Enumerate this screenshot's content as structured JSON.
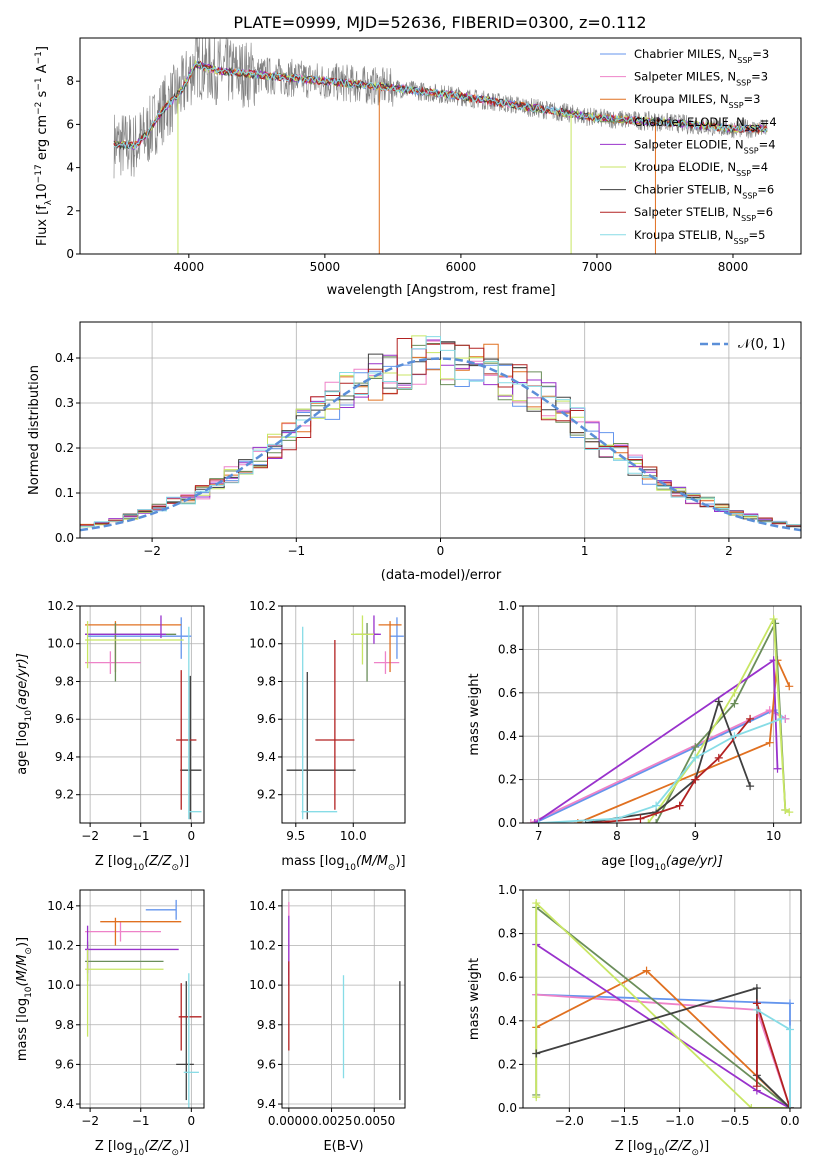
{
  "title": "PLATE=0999, MJD=52636, FIBERID=0300, z=0.112",
  "colors": {
    "gray": "#888888",
    "grid": "#b0b0b0",
    "spectrum_gray": "#7f7f7f"
  },
  "legend_spec": [
    {
      "label": "Chabrier MILES, N",
      "sub": "SSP",
      "tail": "=3",
      "color": "#6495ed"
    },
    {
      "label": "Salpeter MILES, N",
      "sub": "SSP",
      "tail": "=3",
      "color": "#ee82c8"
    },
    {
      "label": "Kroupa MILES, N",
      "sub": "SSP",
      "tail": "=3",
      "color": "#e07020"
    },
    {
      "label": "Chabrier ELODIE, N",
      "sub": "SSP",
      "tail": "=4",
      "color": "#6b8e5a"
    },
    {
      "label": "Salpeter ELODIE, N",
      "sub": "SSP",
      "tail": "=4",
      "color": "#9932cc"
    },
    {
      "label": "Kroupa ELODIE, N",
      "sub": "SSP",
      "tail": "=4",
      "color": "#c8e664"
    },
    {
      "label": "Chabrier STELIB, N",
      "sub": "SSP",
      "tail": "=6",
      "color": "#404040"
    },
    {
      "label": "Salpeter STELIB, N",
      "sub": "SSP",
      "tail": "=6",
      "color": "#b22222"
    },
    {
      "label": "Kroupa STELIB, N",
      "sub": "SSP",
      "tail": "=5",
      "color": "#87dce6"
    }
  ],
  "chart_data": [
    {
      "id": "spectrum",
      "type": "line",
      "xlabel": "wavelength [Angstrom, rest frame]",
      "ylabel_main": "Flux [f",
      "ylabel_sub": "λ",
      "ylabel_mid": "10",
      "ylabel_sup1": "−17",
      "ylabel_tail": " erg cm",
      "ylabel_sup2": "−2",
      "ylabel_tail2": " s",
      "ylabel_sup3": "−1",
      "ylabel_tail3": " A",
      "ylabel_sup4": "−1",
      "ylabel_end": "]",
      "xlim": [
        3200,
        8500
      ],
      "ylim": [
        0,
        10
      ],
      "xticks": [
        "4000",
        "5000",
        "6000",
        "7000",
        "8000"
      ],
      "xtick_values": [
        4000,
        5000,
        6000,
        7000,
        8000
      ],
      "yticks": [
        "0",
        "2",
        "4",
        "6",
        "8"
      ],
      "ytick_values": [
        0,
        2,
        4,
        6,
        8
      ],
      "continuum": [
        [
          3450,
          5.1
        ],
        [
          3600,
          5.0
        ],
        [
          3700,
          5.6
        ],
        [
          3800,
          6.6
        ],
        [
          3950,
          7.6
        ],
        [
          4050,
          8.8
        ],
        [
          4200,
          8.5
        ],
        [
          4500,
          8.3
        ],
        [
          5000,
          8.0
        ],
        [
          5500,
          7.7
        ],
        [
          6000,
          7.3
        ],
        [
          6500,
          6.8
        ],
        [
          7000,
          6.3
        ],
        [
          7500,
          6.1
        ],
        [
          8000,
          5.8
        ],
        [
          8250,
          5.8
        ]
      ]
    },
    {
      "id": "residuals",
      "type": "histogram",
      "xlabel": "(data-model)/error",
      "ylabel": "Normed distribution",
      "xlim": [
        -2.5,
        2.5
      ],
      "ylim": [
        0,
        0.48
      ],
      "xticks": [
        "−2",
        "−1",
        "0",
        "1",
        "2"
      ],
      "xtick_values": [
        -2,
        -1,
        0,
        1,
        2
      ],
      "yticks": [
        "0.0",
        "0.1",
        "0.2",
        "0.3",
        "0.4"
      ],
      "ytick_values": [
        0,
        0.1,
        0.2,
        0.3,
        0.4
      ],
      "legend": "𝒩(0, 1)",
      "gaussian": {
        "mu": 0,
        "sigma": 1,
        "color": "#5b8fd8"
      }
    },
    {
      "id": "age_vs_Z",
      "type": "errorbar",
      "xlabel": "Z [log",
      "xlabel_sub": "10",
      "xlabel_tail": "(Z/Z",
      "xlabel_sub2": "⊙",
      "xlabel_end": ")]",
      "ylabel": "age  [log",
      "ylabel_sub": "10",
      "ylabel_tail": "(age/yr)]",
      "xlim": [
        -2.2,
        0.25
      ],
      "ylim": [
        9.05,
        10.2
      ],
      "xticks": [
        "−2",
        "−1",
        "0"
      ],
      "xtick_values": [
        -2,
        -1,
        0
      ],
      "yticks": [
        "9.2",
        "9.4",
        "9.6",
        "9.8",
        "10.0",
        "10.2"
      ],
      "ytick_values": [
        9.2,
        9.4,
        9.6,
        9.8,
        10.0,
        10.2
      ],
      "points": [
        {
          "x": -0.2,
          "y": 10.04,
          "xe": [
            1.85,
            0.2
          ],
          "ye": [
            0.12,
            0.1
          ],
          "color": "#6495ed"
        },
        {
          "x": -1.6,
          "y": 9.9,
          "xe": [
            0.5,
            0.6
          ],
          "ye": [
            0.06,
            0.06
          ],
          "color": "#ee82c8"
        },
        {
          "x": -1.5,
          "y": 10.1,
          "xe": [
            0.6,
            1.3
          ],
          "ye": [
            0.25,
            0.02
          ],
          "color": "#e07020"
        },
        {
          "x": -1.5,
          "y": 10.05,
          "xe": [
            0.6,
            1.2
          ],
          "ye": [
            0.25,
            0.06
          ],
          "color": "#6b8e5a"
        },
        {
          "x": -0.6,
          "y": 10.05,
          "xe": [
            1.5,
            0.1
          ],
          "ye": [
            0.02,
            0.1
          ],
          "color": "#9932cc"
        },
        {
          "x": -2.05,
          "y": 10.02,
          "xe": [
            0.05,
            1.9
          ],
          "ye": [
            0.15,
            0.1
          ],
          "color": "#c8e664"
        },
        {
          "x": -0.02,
          "y": 9.33,
          "xe": [
            0.2,
            0.22
          ],
          "ye": [
            0.26,
            0.5
          ],
          "color": "#404040"
        },
        {
          "x": -0.2,
          "y": 9.49,
          "xe": [
            0.1,
            0.3
          ],
          "ye": [
            0.37,
            0.37
          ],
          "color": "#b22222"
        },
        {
          "x": -0.05,
          "y": 9.11,
          "xe": [
            0.01,
            0.25
          ],
          "ye": [
            0.04,
            0.98
          ],
          "color": "#87dce6"
        }
      ]
    },
    {
      "id": "age_vs_mass",
      "type": "errorbar",
      "xlabel": "mass [log",
      "xlabel_sub": "10",
      "xlabel_tail": "(M/M",
      "xlabel_sub2": "⊙",
      "xlabel_end": ")]",
      "xlim": [
        9.38,
        10.45
      ],
      "ylim": [
        9.05,
        10.2
      ],
      "xticks": [
        "9.5",
        "10.0"
      ],
      "xtick_values": [
        9.5,
        10.0
      ],
      "yticks": [
        "9.2",
        "9.4",
        "9.6",
        "9.8",
        "10.0",
        "10.2"
      ],
      "ytick_values": [
        9.2,
        9.4,
        9.6,
        9.8,
        10.0,
        10.2
      ],
      "points": [
        {
          "x": 10.38,
          "y": 10.04,
          "xe": [
            0.06,
            0.06
          ],
          "ye": [
            0.12,
            0.1
          ],
          "color": "#6495ed"
        },
        {
          "x": 10.28,
          "y": 9.9,
          "xe": [
            0.1,
            0.12
          ],
          "ye": [
            0.06,
            0.06
          ],
          "color": "#ee82c8"
        },
        {
          "x": 10.32,
          "y": 10.1,
          "xe": [
            0.1,
            0.1
          ],
          "ye": [
            0.25,
            0.02
          ],
          "color": "#e07020"
        },
        {
          "x": 10.12,
          "y": 10.05,
          "xe": [
            0.1,
            0.1
          ],
          "ye": [
            0.25,
            0.06
          ],
          "color": "#6b8e5a"
        },
        {
          "x": 10.18,
          "y": 10.05,
          "xe": [
            0.12,
            0.06
          ],
          "ye": [
            0.05,
            0.1
          ],
          "color": "#9932cc"
        },
        {
          "x": 10.08,
          "y": 10.05,
          "xe": [
            0.1,
            0.1
          ],
          "ye": [
            0.16,
            0.1
          ],
          "color": "#c8e664"
        },
        {
          "x": 9.6,
          "y": 9.33,
          "xe": [
            0.18,
            0.42
          ],
          "ye": [
            0.26,
            0.52
          ],
          "color": "#404040"
        },
        {
          "x": 9.84,
          "y": 9.49,
          "xe": [
            0.17,
            0.17
          ],
          "ye": [
            0.37,
            0.53
          ],
          "color": "#b22222"
        },
        {
          "x": 9.56,
          "y": 9.11,
          "xe": [
            0.01,
            0.3
          ],
          "ye": [
            0.04,
            0.98
          ],
          "color": "#87dce6"
        }
      ]
    },
    {
      "id": "mass_weight_vs_age",
      "type": "line",
      "xlabel": "age  [log",
      "xlabel_sub": "10",
      "xlabel_tail": "(age/yr)]",
      "ylabel": "mass weight",
      "xlim": [
        6.8,
        10.35
      ],
      "ylim": [
        0,
        1.0
      ],
      "xticks": [
        "7",
        "8",
        "9",
        "10"
      ],
      "xtick_values": [
        7,
        8,
        9,
        10
      ],
      "yticks": [
        "0.0",
        "0.2",
        "0.4",
        "0.6",
        "0.8",
        "1.0"
      ],
      "ytick_values": [
        0,
        0.2,
        0.4,
        0.6,
        0.8,
        1.0
      ],
      "series": [
        {
          "color": "#6495ed",
          "x": [
            6.95,
            10.0,
            10.15
          ],
          "y": [
            0.0,
            0.52,
            0.48
          ]
        },
        {
          "color": "#ee82c8",
          "x": [
            6.9,
            9.95,
            10.15
          ],
          "y": [
            0.0,
            0.52,
            0.48
          ]
        },
        {
          "color": "#e07020",
          "x": [
            7.5,
            9.95,
            10.05,
            10.2
          ],
          "y": [
            0.0,
            0.37,
            0.75,
            0.63
          ]
        },
        {
          "color": "#6b8e5a",
          "x": [
            8.5,
            9.0,
            9.5,
            10.02,
            10.15
          ],
          "y": [
            0.0,
            0.35,
            0.55,
            0.92,
            0.06
          ]
        },
        {
          "color": "#9932cc",
          "x": [
            6.95,
            10.0,
            10.05
          ],
          "y": [
            0.0,
            0.75,
            0.25
          ]
        },
        {
          "color": "#c8e664",
          "x": [
            8.4,
            9.0,
            9.5,
            10.0,
            10.15,
            10.2
          ],
          "y": [
            0.0,
            0.3,
            0.6,
            0.94,
            0.06,
            0.05
          ]
        },
        {
          "color": "#404040",
          "x": [
            7.6,
            8.5,
            9.0,
            9.3,
            9.7
          ],
          "y": [
            0.0,
            0.05,
            0.2,
            0.56,
            0.17
          ]
        },
        {
          "color": "#b22222",
          "x": [
            7.7,
            8.3,
            8.8,
            9.0,
            9.3,
            9.7
          ],
          "y": [
            0.0,
            0.02,
            0.08,
            0.2,
            0.3,
            0.48
          ]
        },
        {
          "color": "#87dce6",
          "x": [
            7.0,
            8.0,
            8.5,
            9.0,
            9.5,
            10.1
          ],
          "y": [
            0.0,
            0.02,
            0.08,
            0.3,
            0.4,
            0.48
          ]
        }
      ]
    },
    {
      "id": "mass_vs_Z",
      "type": "errorbar",
      "xlabel": "Z [log",
      "xlabel_sub": "10",
      "xlabel_tail": "(Z/Z",
      "xlabel_sub2": "⊙",
      "xlabel_end": ")]",
      "ylabel": "mass [log",
      "ylabel_sub": "10",
      "ylabel_tail": "(M/M",
      "ylabel_sub2": "⊙",
      "ylabel_end": ")]",
      "xlim": [
        -2.2,
        0.25
      ],
      "ylim": [
        9.38,
        10.48
      ],
      "xticks": [
        "−2",
        "−1",
        "0"
      ],
      "xtick_values": [
        -2,
        -1,
        0
      ],
      "yticks": [
        "9.4",
        "9.6",
        "9.8",
        "10.0",
        "10.2",
        "10.4"
      ],
      "ytick_values": [
        9.4,
        9.6,
        9.8,
        10.0,
        10.2,
        10.4
      ],
      "points": [
        {
          "x": -0.3,
          "y": 10.38,
          "xe": [
            0.6,
            0.0
          ],
          "ye": [
            0.05,
            0.05
          ],
          "color": "#6495ed"
        },
        {
          "x": -1.4,
          "y": 10.27,
          "xe": [
            0.7,
            0.8
          ],
          "ye": [
            0.05,
            0.05
          ],
          "color": "#ee82c8"
        },
        {
          "x": -1.5,
          "y": 10.32,
          "xe": [
            0.3,
            1.3
          ],
          "ye": [
            0.12,
            0.02
          ],
          "color": "#e07020"
        },
        {
          "x": -2.05,
          "y": 10.12,
          "xe": [
            0.05,
            1.5
          ],
          "ye": [
            0.1,
            0.1
          ],
          "color": "#6b8e5a"
        },
        {
          "x": -2.05,
          "y": 10.18,
          "xe": [
            0.05,
            1.8
          ],
          "ye": [
            0.12,
            0.12
          ],
          "color": "#9932cc"
        },
        {
          "x": -2.05,
          "y": 10.08,
          "xe": [
            0.05,
            1.5
          ],
          "ye": [
            0.34,
            0.1
          ],
          "color": "#c8e664"
        },
        {
          "x": -0.1,
          "y": 9.6,
          "xe": [
            0.2,
            0.15
          ],
          "ye": [
            0.18,
            0.42
          ],
          "color": "#404040"
        },
        {
          "x": -0.2,
          "y": 9.84,
          "xe": [
            0.05,
            0.4
          ],
          "ye": [
            0.17,
            0.17
          ],
          "color": "#b22222"
        },
        {
          "x": -0.05,
          "y": 9.56,
          "xe": [
            0.1,
            0.2
          ],
          "ye": [
            0.2,
            0.5
          ],
          "color": "#87dce6"
        }
      ]
    },
    {
      "id": "mass_vs_ebv",
      "type": "errorbar",
      "xlabel": "E(B-V)",
      "xlim": [
        -0.0004,
        0.0068
      ],
      "ylim": [
        9.38,
        10.48
      ],
      "xticks": [
        "0.0000",
        "0.0025",
        "0.0050"
      ],
      "xtick_values": [
        0.0,
        0.0025,
        0.005
      ],
      "yticks": [
        "9.4",
        "9.6",
        "9.8",
        "10.0",
        "10.2",
        "10.4"
      ],
      "ytick_values": [
        9.4,
        9.6,
        9.8,
        10.0,
        10.2,
        10.4
      ],
      "vlines": [
        {
          "x": 0.0,
          "y0": 10.05,
          "y1": 10.42,
          "color": "#ee82c8"
        },
        {
          "x": 0.0,
          "y0": 10.0,
          "y1": 10.35,
          "color": "#9932cc"
        },
        {
          "x": 0.0,
          "y0": 9.67,
          "y1": 10.12,
          "color": "#b22222"
        },
        {
          "x": 0.0032,
          "y0": 9.53,
          "y1": 10.05,
          "color": "#87dce6"
        },
        {
          "x": 0.0065,
          "y0": 9.42,
          "y1": 10.02,
          "color": "#404040"
        }
      ]
    },
    {
      "id": "mass_weight_vs_Z",
      "type": "line",
      "xlabel": "Z [log",
      "xlabel_sub": "10",
      "xlabel_tail": "(Z/Z",
      "xlabel_sub2": "⊙",
      "xlabel_end": ")]",
      "ylabel": "mass weight",
      "xlim": [
        -2.42,
        0.1
      ],
      "ylim": [
        0,
        1.0
      ],
      "xticks": [
        "−2.0",
        "−1.5",
        "−1.0",
        "−0.5",
        "0.0"
      ],
      "xtick_values": [
        -2.0,
        -1.5,
        -1.0,
        -0.5,
        0.0
      ],
      "yticks": [
        "0.0",
        "0.2",
        "0.4",
        "0.6",
        "0.8",
        "1.0"
      ],
      "ytick_values": [
        0,
        0.2,
        0.4,
        0.6,
        0.8,
        1.0
      ],
      "series": [
        {
          "color": "#6495ed",
          "x": [
            -2.3,
            0.0,
            0.0
          ],
          "y": [
            0.52,
            0.48,
            0.0
          ]
        },
        {
          "color": "#ee82c8",
          "x": [
            -2.3,
            -0.3,
            0.0
          ],
          "y": [
            0.52,
            0.45,
            0.0
          ]
        },
        {
          "color": "#e07020",
          "x": [
            -2.3,
            -1.3,
            0.0
          ],
          "y": [
            0.37,
            0.63,
            0.0
          ]
        },
        {
          "color": "#6b8e5a",
          "x": [
            -2.3,
            -2.3,
            0.0
          ],
          "y": [
            0.06,
            0.92,
            0.0
          ]
        },
        {
          "color": "#9932cc",
          "x": [
            -2.3,
            -0.3,
            0.0
          ],
          "y": [
            0.75,
            0.08,
            0.0
          ]
        },
        {
          "color": "#c8e664",
          "x": [
            -2.3,
            -2.3,
            -0.35,
            0.0
          ],
          "y": [
            0.05,
            0.94,
            0.0,
            0.0
          ]
        },
        {
          "color": "#404040",
          "x": [
            -2.3,
            -0.3,
            -0.3,
            0.0
          ],
          "y": [
            0.25,
            0.55,
            0.15,
            0.0
          ]
        },
        {
          "color": "#b22222",
          "x": [
            -0.3,
            -0.3,
            0.0
          ],
          "y": [
            0.1,
            0.48,
            0.0
          ]
        },
        {
          "color": "#87dce6",
          "x": [
            -0.3,
            0.0,
            0.0
          ],
          "y": [
            0.45,
            0.36,
            0.0
          ]
        }
      ]
    }
  ]
}
